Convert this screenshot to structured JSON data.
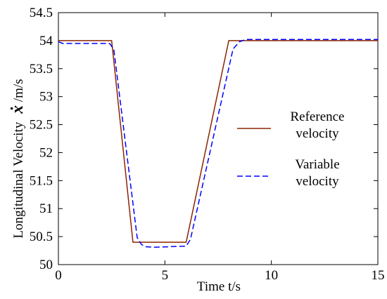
{
  "chart_data": {
    "type": "line",
    "title": "",
    "xlabel": "Time t/s",
    "ylabel_symbol": "ẋ",
    "ylabel": "Longitudinal Velocity",
    "ylabel_unit": " /m/s",
    "xlim": [
      0,
      15
    ],
    "ylim": [
      50,
      54.5
    ],
    "xticks": [
      0,
      5,
      10,
      15
    ],
    "xtick_labels": [
      "0",
      "5",
      "10",
      "15"
    ],
    "yticks": [
      50,
      50.5,
      51,
      51.5,
      52,
      52.5,
      53,
      53.5,
      54,
      54.5
    ],
    "ytick_labels": [
      "50",
      "50.5",
      "51",
      "51.5",
      "52",
      "52.5",
      "53",
      "53.5",
      "54",
      "54.5"
    ],
    "grid": false,
    "legend_position": "right",
    "series": [
      {
        "name": "Reference velocity",
        "legend_lines": [
          "Reference",
          "velocity"
        ],
        "color": "#8b2500",
        "dash": "solid",
        "x": [
          0,
          2.5,
          3.5,
          6.0,
          8.0,
          15
        ],
        "y": [
          54.0,
          54.0,
          50.4,
          50.4,
          54.0,
          54.0
        ]
      },
      {
        "name": "Variable velocity",
        "legend_lines": [
          "Variable",
          "velocity"
        ],
        "color": "#0000ff",
        "dash": "dashed",
        "x": [
          0,
          0.2,
          2.4,
          2.6,
          3.7,
          3.9,
          4.1,
          4.5,
          6.0,
          6.2,
          8.2,
          8.5,
          8.8,
          15
        ],
        "y": [
          53.98,
          53.95,
          53.95,
          53.85,
          50.48,
          50.36,
          50.32,
          50.31,
          50.33,
          50.45,
          53.85,
          53.98,
          54.02,
          54.02
        ]
      }
    ]
  }
}
